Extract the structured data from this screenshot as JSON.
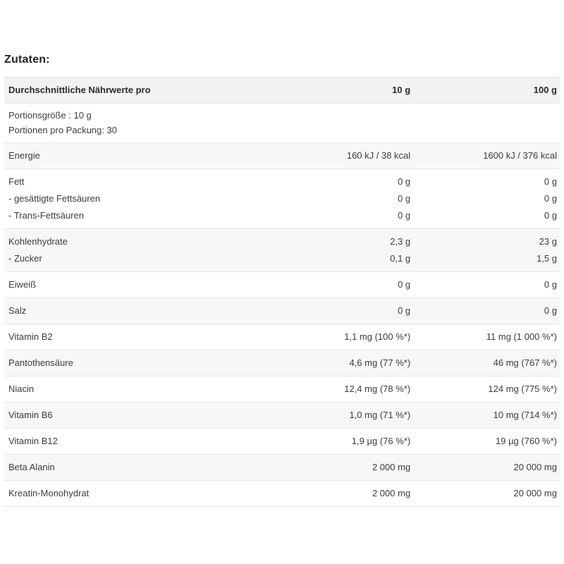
{
  "ingredients_heading": "Zutaten:",
  "table": {
    "header": {
      "label": "Durchschnittliche Nährwerte pro",
      "col_10g": "10 g",
      "col_100g": "100 g"
    },
    "serving_info": {
      "line1": "Portionsgröße : 10 g",
      "line2": "Portionen pro Packung: 30"
    },
    "sections": [
      {
        "rows": [
          {
            "label": "Energie",
            "v10": "160 kJ / 38 kcal",
            "v100": "1600 kJ / 376 kcal"
          }
        ]
      },
      {
        "rows": [
          {
            "label": "Fett",
            "v10": "0 g",
            "v100": "0 g"
          },
          {
            "label": "- gesättigte Fettsäuren",
            "v10": "0 g",
            "v100": "0 g"
          },
          {
            "label": "- Trans-Fettsäuren",
            "v10": "0 g",
            "v100": "0 g"
          }
        ]
      },
      {
        "rows": [
          {
            "label": "Kohlenhydrate",
            "v10": "2,3 g",
            "v100": "23 g"
          },
          {
            "label": "- Zucker",
            "v10": "0,1 g",
            "v100": "1,5 g"
          }
        ]
      },
      {
        "rows": [
          {
            "label": "Eiweiß",
            "v10": "0 g",
            "v100": "0 g"
          }
        ]
      },
      {
        "rows": [
          {
            "label": "Salz",
            "v10": "0 g",
            "v100": "0 g"
          }
        ]
      },
      {
        "rows": [
          {
            "label": "Vitamin B2",
            "v10": "1,1 mg (100 %*)",
            "v100": "11 mg (1 000 %*)"
          }
        ]
      },
      {
        "rows": [
          {
            "label": "Pantothensäure",
            "v10": "4,6 mg (77 %*)",
            "v100": "46 mg (767 %*)"
          }
        ]
      },
      {
        "rows": [
          {
            "label": "Niacin",
            "v10": "12,4 mg (78 %*)",
            "v100": "124 mg (775 %*)"
          }
        ]
      },
      {
        "rows": [
          {
            "label": "Vitamin B6",
            "v10": "1,0 mg (71 %*)",
            "v100": "10 mg (714 %*)"
          }
        ]
      },
      {
        "rows": [
          {
            "label": "Vitamin B12",
            "v10": "1,9 µg (76 %*)",
            "v100": "19 µg (760 %*)"
          }
        ]
      },
      {
        "rows": [
          {
            "label": "Beta Alanin",
            "v10": "2 000 mg",
            "v100": "20 000 mg"
          }
        ]
      },
      {
        "rows": [
          {
            "label": "Kreatin-Monohydrat",
            "v10": "2 000 mg",
            "v100": "20 000 mg"
          }
        ]
      }
    ]
  },
  "colors": {
    "page_bg": "#ffffff",
    "header_bg": "#f2f2f2",
    "stripe_bg": "#f7f7f7",
    "border": "#e6e6e6",
    "text": "#3c3c3c",
    "heading_text": "#222222"
  }
}
